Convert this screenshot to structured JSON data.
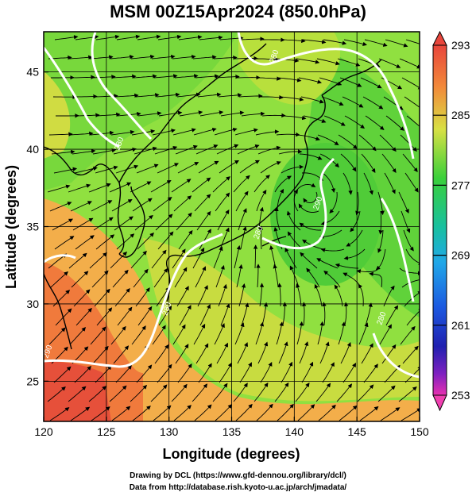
{
  "title": "MSM 00Z15Apr2024 (850.0hPa)",
  "xaxis": {
    "label": "Longitude (degrees)",
    "range": [
      120,
      150
    ],
    "ticks": [
      120,
      125,
      130,
      135,
      140,
      145,
      150
    ]
  },
  "yaxis": {
    "label": "Latitude  (degrees)",
    "range": [
      22.4,
      47.6
    ],
    "ticks": [
      25,
      30,
      35,
      40,
      45
    ]
  },
  "colorbar": {
    "ticks": [
      "293",
      "285",
      "277",
      "269",
      "261",
      "253"
    ],
    "range": [
      253,
      293
    ]
  },
  "contour_labels": [
    "290",
    "280",
    "280",
    "290",
    "280",
    "280",
    "280"
  ],
  "credits": [
    "Drawing by DCL (https://www.gfd-dennou.org/library/dcl/)",
    "Data from http://database.rish.kyoto-u.ac.jp/arch/jmadata/"
  ],
  "colors": {
    "warm": "#e8463c",
    "orange": "#f0a24a",
    "yellow": "#d8e044",
    "green": "#40d040",
    "contour": "#ffffff",
    "coast": "#000000"
  }
}
